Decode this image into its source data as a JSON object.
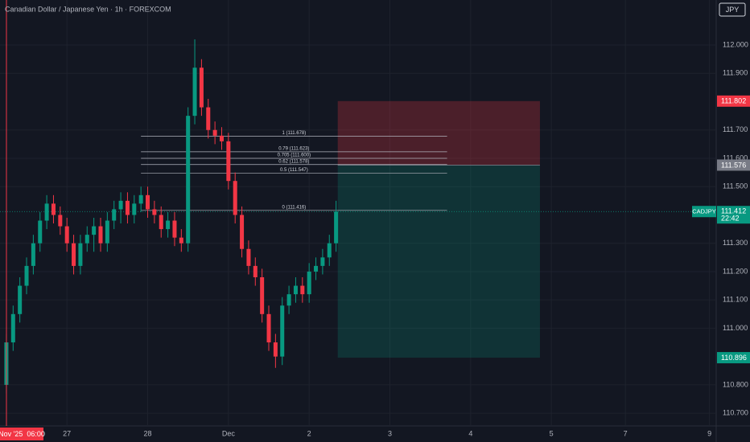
{
  "chart_data": {
    "type": "candlestick",
    "title": "Canadian Dollar / Japanese Yen · 1h · FOREXCOM",
    "currency": "JPY",
    "symbol": "CADJPY",
    "countdown": "22:42",
    "cursor_label": "Nov '25  06:00",
    "x": [
      0,
      2,
      4,
      6,
      8,
      10,
      12,
      14,
      16,
      18,
      20,
      22,
      24,
      26,
      28,
      30,
      32,
      34,
      36,
      38,
      40,
      42,
      44,
      46,
      48,
      50,
      52,
      54,
      56,
      58,
      60,
      62,
      64,
      66,
      68,
      70,
      72,
      74,
      76,
      78,
      80,
      82,
      84,
      86,
      88,
      90,
      92,
      94,
      96,
      98
    ],
    "open": [
      110.8,
      110.95,
      111.05,
      111.15,
      111.22,
      111.3,
      111.38,
      111.44,
      111.4,
      111.36,
      111.3,
      111.22,
      111.3,
      111.33,
      111.36,
      111.3,
      111.38,
      111.42,
      111.45,
      111.4,
      111.44,
      111.47,
      111.42,
      111.4,
      111.35,
      111.38,
      111.32,
      111.3,
      111.75,
      111.92,
      111.78,
      111.7,
      111.68,
      111.66,
      111.52,
      111.4,
      111.28,
      111.22,
      111.18,
      111.05,
      110.95,
      110.9,
      111.08,
      111.12,
      111.15,
      111.12,
      111.2,
      111.22,
      111.25,
      111.3
    ],
    "high": [
      110.98,
      111.08,
      111.18,
      111.25,
      111.33,
      111.41,
      111.47,
      111.47,
      111.43,
      111.39,
      111.33,
      111.33,
      111.36,
      111.39,
      111.39,
      111.41,
      111.45,
      111.48,
      111.48,
      111.47,
      111.5,
      111.5,
      111.45,
      111.43,
      111.41,
      111.41,
      111.35,
      111.78,
      112.02,
      111.95,
      111.81,
      111.73,
      111.71,
      111.69,
      111.55,
      111.43,
      111.31,
      111.25,
      111.21,
      111.08,
      110.98,
      111.11,
      111.15,
      111.18,
      111.18,
      111.23,
      111.25,
      111.28,
      111.33,
      111.45
    ],
    "low": [
      110.77,
      110.92,
      111.02,
      111.12,
      111.19,
      111.27,
      111.35,
      111.37,
      111.33,
      111.27,
      111.19,
      111.19,
      111.27,
      111.27,
      111.27,
      111.27,
      111.35,
      111.37,
      111.37,
      111.37,
      111.41,
      111.39,
      111.37,
      111.32,
      111.32,
      111.29,
      111.27,
      111.27,
      111.72,
      111.75,
      111.67,
      111.65,
      111.63,
      111.49,
      111.37,
      111.25,
      111.19,
      111.15,
      111.02,
      110.92,
      110.86,
      110.87,
      111.05,
      111.09,
      111.09,
      111.09,
      111.17,
      111.19,
      111.22,
      111.27
    ],
    "close": [
      110.95,
      111.05,
      111.15,
      111.22,
      111.3,
      111.38,
      111.44,
      111.4,
      111.36,
      111.3,
      111.22,
      111.3,
      111.33,
      111.36,
      111.3,
      111.38,
      111.42,
      111.45,
      111.4,
      111.44,
      111.47,
      111.42,
      111.4,
      111.35,
      111.38,
      111.32,
      111.3,
      111.75,
      111.92,
      111.78,
      111.7,
      111.68,
      111.66,
      111.52,
      111.4,
      111.28,
      111.22,
      111.18,
      111.05,
      110.95,
      110.9,
      111.08,
      111.12,
      111.15,
      111.12,
      111.2,
      111.22,
      111.25,
      111.3,
      111.412
    ],
    "up_color": "#089981",
    "down_color": "#f23645",
    "xlim": [
      -1.9,
      211
    ],
    "ylim": [
      110.655,
      112.159
    ],
    "xticks": [
      {
        "value": 18,
        "label": "27"
      },
      {
        "value": 42,
        "label": "28"
      },
      {
        "value": 66,
        "label": "Dec"
      },
      {
        "value": 90,
        "label": "2"
      },
      {
        "value": 114,
        "label": "3"
      },
      {
        "value": 138,
        "label": "4"
      },
      {
        "value": 162,
        "label": "5"
      },
      {
        "value": 184,
        "label": "7"
      },
      {
        "value": 209,
        "label": "9"
      }
    ],
    "yticks": [
      {
        "value": 112,
        "label": "112.000"
      },
      {
        "value": 111.9,
        "label": "111.900"
      },
      {
        "value": 111.7,
        "label": "111.700"
      },
      {
        "value": 111.6,
        "label": "111.600"
      },
      {
        "value": 111.5,
        "label": "111.500"
      },
      {
        "value": 111.3,
        "label": "111.300"
      },
      {
        "value": 111.2,
        "label": "111.200"
      },
      {
        "value": 111.1,
        "label": "111.100"
      },
      {
        "value": 111,
        "label": "111.000"
      },
      {
        "value": 110.8,
        "label": "110.800"
      },
      {
        "value": 110.7,
        "label": "110.700"
      }
    ],
    "grid": true,
    "fib_range": [
      40,
      131
    ],
    "fib_levels": [
      {
        "label": "1 (111.678)",
        "value": 111.678
      },
      {
        "label": "0.79 (111.623)",
        "value": 111.623
      },
      {
        "label": "0.705 (111.600)",
        "value": 111.6
      },
      {
        "label": "0.62 (111.578)",
        "value": 111.578
      },
      {
        "label": "0.5 (111.547)",
        "value": 111.547
      },
      {
        "label": "0 (111.416)",
        "value": 111.416
      }
    ],
    "position": {
      "x_start": 98.5,
      "x_end": 158.6,
      "stop": 111.802,
      "entry": 111.576,
      "target": 110.896
    }
  }
}
